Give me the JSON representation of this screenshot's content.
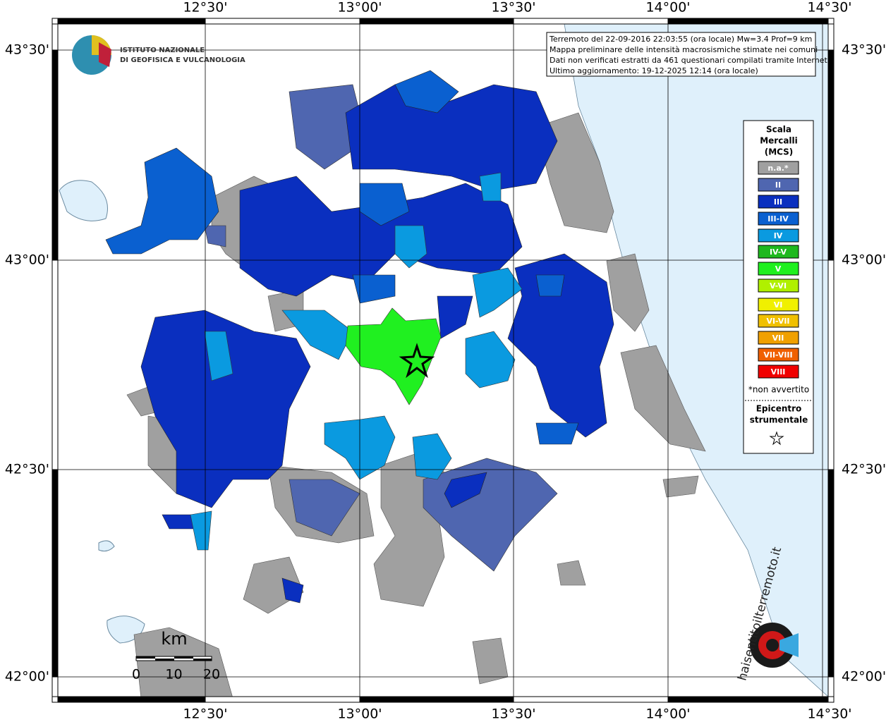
{
  "axes": {
    "top": [
      "12°30'",
      "13°00'",
      "13°30'",
      "14°00'",
      "14°30'"
    ],
    "bottom": [
      "12°30'",
      "13°00'",
      "13°30'",
      "14°00'",
      "14°30'"
    ],
    "left": [
      "43°30'",
      "43°00'",
      "42°30'",
      "42°00'"
    ],
    "right": [
      "43°30'",
      "43°00'",
      "42°30'",
      "42°00'"
    ]
  },
  "logo": {
    "line1": "ISTITUTO NAZIONALE",
    "line2": "DI GEOFISICA E VULCANOLOGIA"
  },
  "info": [
    "Terremoto del 22-09-2016 22:03:55 (ora locale) Mw=3.4 Prof=9 km",
    "Mappa preliminare delle intensità macrosismiche stimate nei comuni",
    "Dati non verificati estratti da 461 questionari compilati tramite Internet.",
    "Ultimo aggiornamento: 19-12-2025 12:14 (ora locale)"
  ],
  "legend": {
    "title": [
      "Scala",
      "Mercalli",
      "(MCS)"
    ],
    "items": [
      {
        "label": "n.a.*",
        "color": "#a0a0a0"
      },
      {
        "label": "II",
        "color": "#4f66b0"
      },
      {
        "label": "III",
        "color": "#0a2fbf"
      },
      {
        "label": "III-IV",
        "color": "#0a60d0"
      },
      {
        "label": "IV",
        "color": "#0a9ae0"
      },
      {
        "label": "IV-V",
        "color": "#1eb81e"
      },
      {
        "label": "V",
        "color": "#20f020"
      },
      {
        "label": "V-VI",
        "color": "#b0f000"
      },
      {
        "label": "VI",
        "color": "#f0f000"
      },
      {
        "label": "VI-VII",
        "color": "#f0c000"
      },
      {
        "label": "VII",
        "color": "#f0a000"
      },
      {
        "label": "VII-VIII",
        "color": "#f06000"
      },
      {
        "label": "VIII",
        "color": "#f00000"
      }
    ],
    "note": "*non avvertito",
    "epicentre": [
      "Epicentro",
      "strumentale"
    ]
  },
  "scale": {
    "unit": "km",
    "ticks": [
      "0",
      "10",
      "20"
    ]
  },
  "watermark": "haisentitoilterremoto.it"
}
